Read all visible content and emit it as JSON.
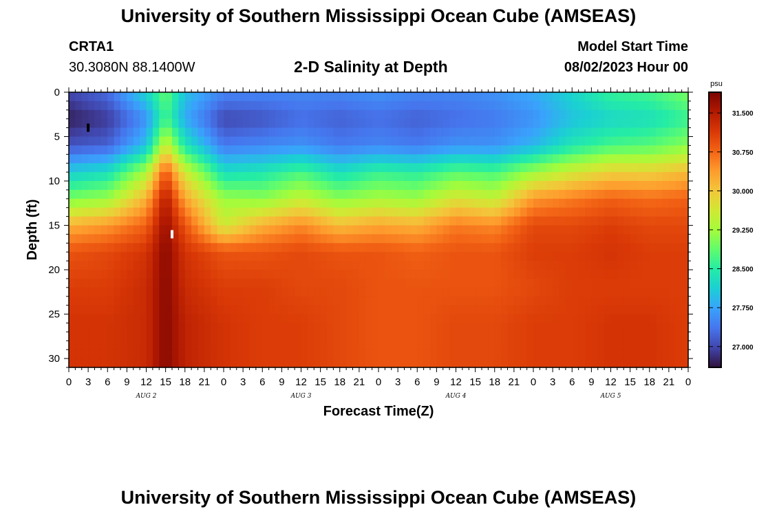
{
  "header": {
    "title": "University of Southern Mississippi Ocean Cube (AMSEAS)",
    "station_id": "CRTA1",
    "coordinates": "30.3080N  88.1400W",
    "subtitle": "2-D Salinity at Depth",
    "model_start_label": "Model Start Time",
    "model_start_value": "08/02/2023 Hour 00"
  },
  "footer": {
    "title": "University of Southern Mississippi Ocean Cube (AMSEAS)"
  },
  "colors": {
    "colormap": [
      "#30123b",
      "#4145ab",
      "#4675ed",
      "#39a2fc",
      "#1bcfd4",
      "#24eca6",
      "#61fc6c",
      "#a4fc3b",
      "#d1e834",
      "#f3c63a",
      "#fe9b2d",
      "#f36315",
      "#d93806",
      "#b11901",
      "#7a0402"
    ],
    "frame": "#000000"
  },
  "chart_data": {
    "type": "heatmap",
    "title": "2-D Salinity at Depth",
    "xlabel": "Forecast Time(Z)",
    "ylabel": "Depth (ft)",
    "xlim": [
      0,
      96
    ],
    "ylim": [
      0,
      31
    ],
    "x_unit": "hours since 08/02/2023 00Z",
    "x_ticks": [
      0,
      3,
      6,
      9,
      12,
      15,
      18,
      21,
      24,
      27,
      30,
      33,
      36,
      39,
      42,
      45,
      48,
      51,
      54,
      57,
      60,
      63,
      66,
      69,
      72,
      75,
      78,
      81,
      84,
      87,
      90,
      93,
      96
    ],
    "x_tick_labels": [
      "0",
      "3",
      "6",
      "9",
      "12",
      "15",
      "18",
      "21",
      "0",
      "3",
      "6",
      "9",
      "12",
      "15",
      "18",
      "21",
      "0",
      "3",
      "6",
      "9",
      "12",
      "15",
      "18",
      "21",
      "0",
      "3",
      "6",
      "9",
      "12",
      "15",
      "18",
      "21",
      "0"
    ],
    "day_labels": [
      {
        "label": "AUG 2",
        "x": 12
      },
      {
        "label": "AUG 3",
        "x": 36
      },
      {
        "label": "AUG 4",
        "x": 60
      },
      {
        "label": "AUG 5",
        "x": 84
      }
    ],
    "y_ticks": [
      0,
      5,
      10,
      15,
      20,
      25,
      30
    ],
    "y_tick_labels": [
      "0",
      "5",
      "10",
      "15",
      "20",
      "25",
      "30"
    ],
    "colorbar": {
      "unit": "psu",
      "vmin": 26.6,
      "vmax": 31.9,
      "ticks": [
        27.0,
        27.75,
        28.5,
        29.25,
        30.0,
        30.75,
        31.5
      ],
      "tick_labels": [
        "27.000",
        "27.750",
        "28.500",
        "29.250",
        "30.000",
        "30.750",
        "31.500"
      ]
    },
    "markers": [
      {
        "name": "black-marker",
        "x": 3,
        "y": 4,
        "color": "#000000"
      },
      {
        "name": "white-marker",
        "x": 16,
        "y": 16,
        "color": "#ffffff"
      }
    ],
    "time_hours": [
      0,
      6,
      12,
      15,
      18,
      24,
      30,
      36,
      42,
      48,
      54,
      60,
      66,
      72,
      78,
      84,
      90,
      96
    ],
    "depth_ft": [
      0,
      3,
      6,
      9,
      12,
      15,
      18,
      22,
      26,
      31
    ],
    "salinity_psu": [
      [
        27.0,
        27.3,
        28.2,
        28.9,
        28.0,
        27.5,
        27.5,
        27.5,
        27.5,
        27.6,
        27.5,
        27.5,
        27.6,
        27.8,
        28.2,
        28.6,
        28.7,
        29.0
      ],
      [
        26.7,
        26.9,
        27.6,
        28.7,
        27.8,
        27.0,
        27.1,
        27.3,
        27.2,
        27.3,
        27.2,
        27.3,
        27.4,
        27.6,
        28.0,
        28.2,
        28.3,
        28.6
      ],
      [
        27.1,
        27.2,
        28.0,
        29.6,
        28.4,
        27.4,
        27.5,
        27.6,
        27.4,
        27.5,
        27.4,
        27.6,
        27.6,
        27.9,
        28.4,
        28.7,
        28.8,
        29.1
      ],
      [
        28.1,
        28.3,
        29.3,
        30.9,
        29.6,
        28.3,
        28.4,
        28.7,
        28.3,
        28.6,
        28.5,
        28.8,
        28.7,
        29.2,
        29.6,
        29.9,
        29.9,
        30.1
      ],
      [
        29.0,
        29.2,
        30.2,
        31.5,
        30.3,
        29.2,
        29.1,
        29.5,
        29.1,
        29.3,
        29.2,
        29.7,
        29.5,
        30.4,
        30.6,
        30.8,
        30.7,
        30.8
      ],
      [
        30.2,
        30.4,
        30.8,
        31.7,
        30.9,
        29.6,
        30.2,
        30.5,
        30.1,
        30.3,
        30.2,
        30.6,
        30.5,
        31.0,
        31.0,
        31.1,
        31.0,
        31.0
      ],
      [
        30.9,
        31.0,
        31.2,
        31.8,
        31.2,
        30.9,
        30.9,
        31.0,
        30.9,
        30.9,
        30.8,
        30.9,
        30.9,
        31.1,
        31.1,
        31.2,
        31.1,
        31.1
      ],
      [
        31.1,
        31.1,
        31.3,
        31.8,
        31.3,
        31.1,
        31.1,
        31.0,
        31.0,
        30.9,
        30.9,
        30.9,
        30.9,
        31.0,
        31.1,
        31.1,
        31.1,
        31.1
      ],
      [
        31.2,
        31.2,
        31.3,
        31.8,
        31.4,
        31.2,
        31.1,
        31.1,
        31.0,
        30.9,
        30.9,
        31.0,
        31.0,
        31.1,
        31.1,
        31.2,
        31.2,
        31.1
      ],
      [
        31.2,
        31.2,
        31.3,
        31.8,
        31.4,
        31.2,
        31.1,
        31.1,
        31.0,
        30.9,
        30.9,
        31.0,
        31.0,
        31.1,
        31.1,
        31.2,
        31.2,
        31.1
      ]
    ]
  }
}
